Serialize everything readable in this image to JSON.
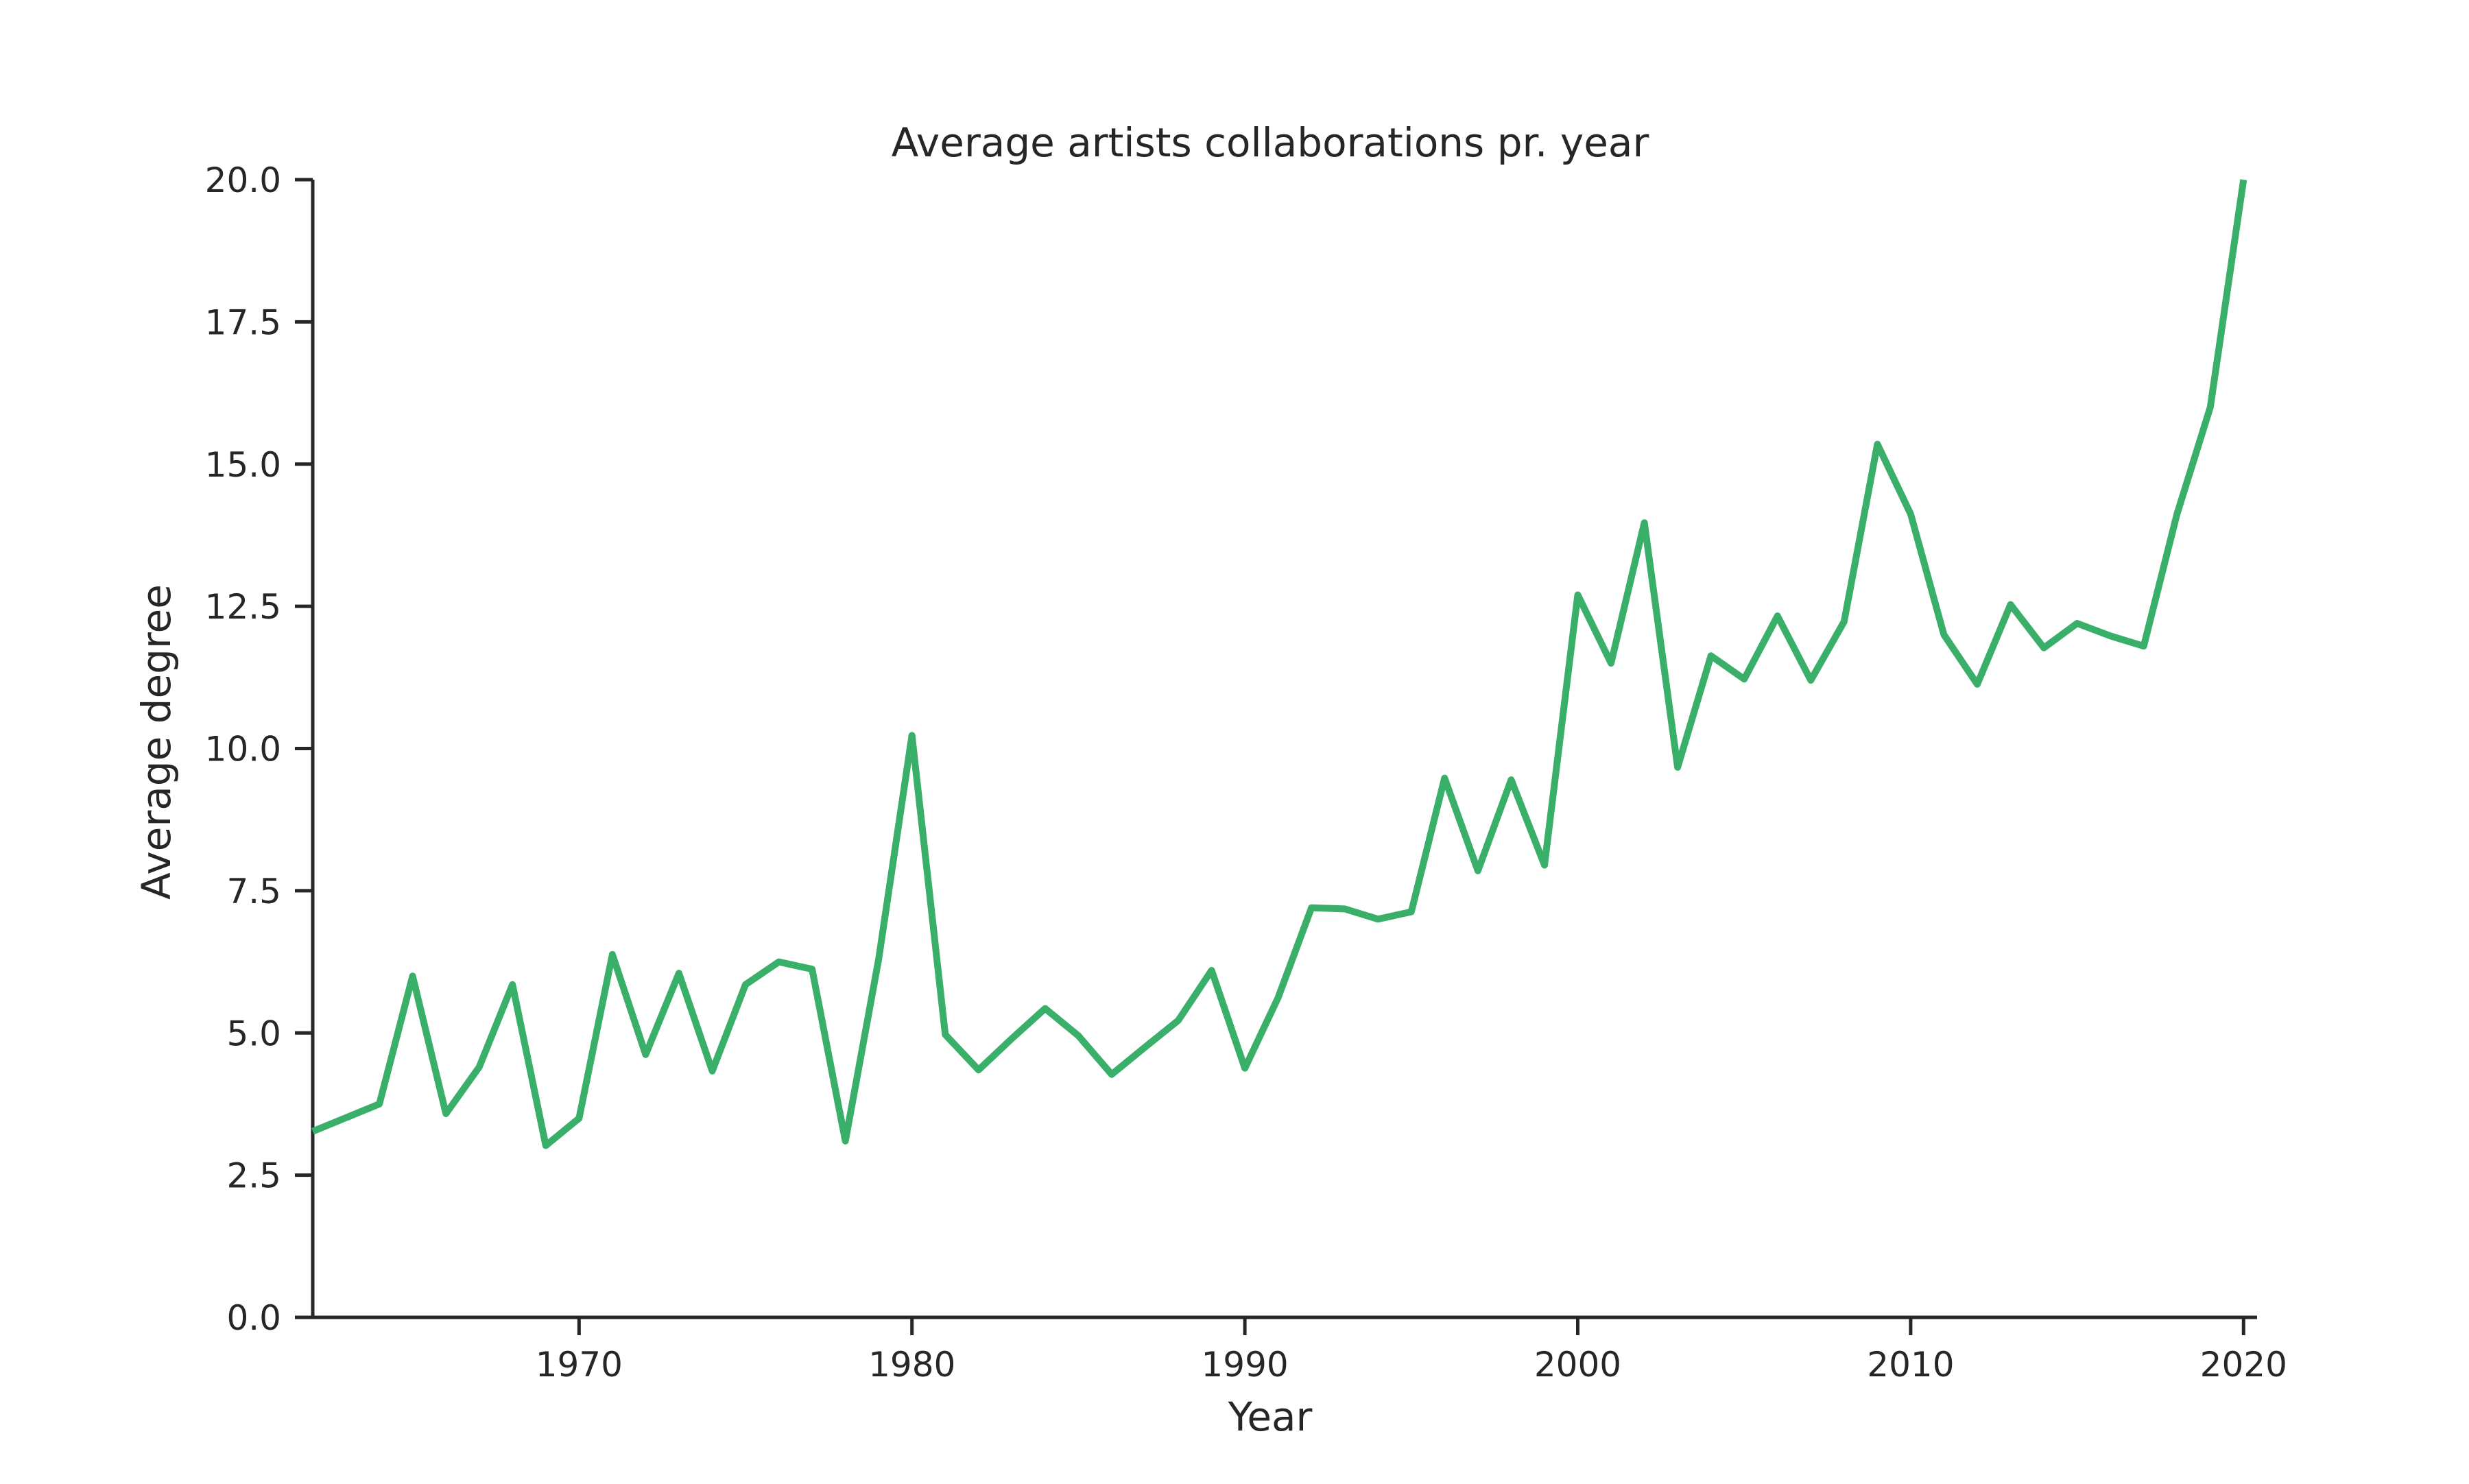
{
  "chart_data": {
    "type": "line",
    "title": "Average artists collaborations  pr. year",
    "xlabel": "Year",
    "ylabel": "Average degree",
    "xlim": [
      1962,
      2020.2
    ],
    "ylim": [
      0,
      20
    ],
    "xticks": [
      1970,
      1980,
      1990,
      2000,
      2010,
      2020
    ],
    "xtick_labels": [
      "1970",
      "1980",
      "1990",
      "2000",
      "2010",
      "2020"
    ],
    "yticks": [
      0,
      2.5,
      5,
      7.5,
      10,
      12.5,
      15,
      17.5,
      20
    ],
    "ytick_labels": [
      "0.0",
      "2.5",
      "5.0",
      "7.5",
      "10.0",
      "12.5",
      "15.0",
      "17.5",
      "20.0"
    ],
    "grid": false,
    "legend": "none",
    "line_color": "#3aaf6a",
    "axis_color": "#262626",
    "series": [
      {
        "x": [
          1962,
          1964,
          1965,
          1966,
          1967,
          1968,
          1969,
          1970,
          1971,
          1972,
          1973,
          1974,
          1975,
          1976,
          1977,
          1978,
          1979,
          1980,
          1981,
          1982,
          1983,
          1984,
          1985,
          1986,
          1987,
          1988,
          1989,
          1990,
          1991,
          1992,
          1993,
          1994,
          1995,
          1996,
          1997,
          1998,
          1999,
          2000,
          2001,
          2002,
          2003,
          2004,
          2005,
          2006,
          2007,
          2008,
          2009,
          2010,
          2011,
          2012,
          2013,
          2014,
          2015,
          2016,
          2017,
          2018,
          2019,
          2020
        ],
        "values": [
          3.27,
          3.75,
          6.0,
          3.58,
          4.4,
          5.85,
          3.02,
          3.5,
          6.38,
          4.62,
          6.05,
          4.33,
          5.85,
          6.25,
          6.12,
          3.1,
          6.3,
          10.23,
          4.97,
          4.35,
          4.9,
          5.43,
          4.95,
          4.27,
          4.75,
          5.22,
          6.1,
          4.38,
          5.62,
          7.2,
          7.18,
          7.0,
          7.13,
          9.48,
          7.85,
          9.45,
          7.95,
          12.7,
          11.5,
          13.97,
          9.67,
          11.63,
          11.22,
          12.33,
          11.2,
          12.23,
          15.35,
          14.12,
          12.0,
          11.13,
          12.53,
          11.77,
          12.2,
          11.98,
          11.8,
          14.12,
          16.0,
          20.0
        ]
      }
    ]
  }
}
